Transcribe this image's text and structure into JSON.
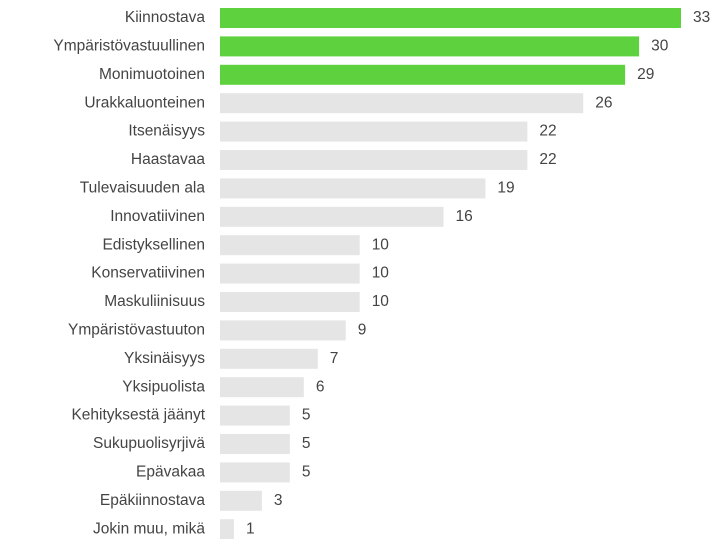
{
  "chart_data": {
    "type": "barh",
    "categories": [
      "Kiinnostava",
      "Ympäristövastuullinen",
      "Monimuotoinen",
      "Urakkaluonteinen",
      "Itsenäisyys",
      "Haastavaa",
      "Tulevaisuuden ala",
      "Innovatiivinen",
      "Edistyksellinen",
      "Konservatiivinen",
      "Maskuliinisuus",
      "Ympäristövastuuton",
      "Yksinäisyys",
      "Yksipuolista",
      "Kehityksestä jäänyt",
      "Sukupuolisyrjivä",
      "Epävakaa",
      "Epäkiinnostava",
      "Jokin muu, mikä"
    ],
    "values": [
      33,
      30,
      29,
      26,
      22,
      22,
      19,
      16,
      10,
      10,
      10,
      9,
      7,
      6,
      5,
      5,
      5,
      3,
      1
    ],
    "colors": [
      "#5ed13e",
      "#5ed13e",
      "#5ed13e",
      "#e5e5e5",
      "#e5e5e5",
      "#e5e5e5",
      "#e5e5e5",
      "#e5e5e5",
      "#e5e5e5",
      "#e5e5e5",
      "#e5e5e5",
      "#e5e5e5",
      "#e5e5e5",
      "#e5e5e5",
      "#e5e5e5",
      "#e5e5e5",
      "#e5e5e5",
      "#e5e5e5",
      "#e5e5e5"
    ]
  }
}
